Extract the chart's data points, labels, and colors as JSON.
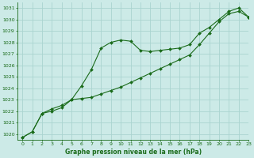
{
  "title": "Graphe pression niveau de la mer (hPa)",
  "bg_color": "#cceae7",
  "grid_color": "#aad4d0",
  "line_color": "#1a6b1a",
  "marker_color": "#1a6b1a",
  "xlim": [
    -0.5,
    23
  ],
  "ylim": [
    1019.5,
    1031.5
  ],
  "yticks": [
    1020,
    1021,
    1022,
    1023,
    1024,
    1025,
    1026,
    1027,
    1028,
    1029,
    1030,
    1031
  ],
  "xticks": [
    0,
    1,
    2,
    3,
    4,
    5,
    6,
    7,
    8,
    9,
    10,
    11,
    12,
    13,
    14,
    15,
    16,
    17,
    18,
    19,
    20,
    21,
    22,
    23
  ],
  "series1_x": [
    0,
    1,
    2,
    3,
    4,
    5,
    6,
    7,
    8,
    9,
    10,
    11,
    12,
    13,
    14,
    15,
    16,
    17,
    18,
    19,
    20,
    21,
    22,
    23
  ],
  "series1_y": [
    1019.7,
    1020.2,
    1021.8,
    1022.0,
    1022.3,
    1023.0,
    1024.2,
    1025.6,
    1027.5,
    1028.0,
    1028.2,
    1028.1,
    1027.3,
    1027.2,
    1027.3,
    1027.4,
    1027.5,
    1027.8,
    1028.8,
    1029.3,
    1030.0,
    1030.7,
    1031.0,
    1030.2
  ],
  "series2_x": [
    0,
    1,
    2,
    3,
    4,
    5,
    6,
    7,
    8,
    9,
    10,
    11,
    12,
    13,
    14,
    15,
    16,
    17,
    18,
    19,
    20,
    21,
    22,
    23
  ],
  "series2_y": [
    1019.7,
    1020.2,
    1021.8,
    1022.2,
    1022.5,
    1023.0,
    1023.1,
    1023.2,
    1023.5,
    1023.8,
    1024.1,
    1024.5,
    1024.9,
    1025.3,
    1025.7,
    1026.1,
    1026.5,
    1026.9,
    1027.8,
    1028.8,
    1029.8,
    1030.5,
    1030.7,
    1030.2
  ],
  "title_fontsize": 5.5,
  "tick_fontsize": 4.5,
  "figwidth": 3.2,
  "figheight": 2.0,
  "dpi": 100
}
